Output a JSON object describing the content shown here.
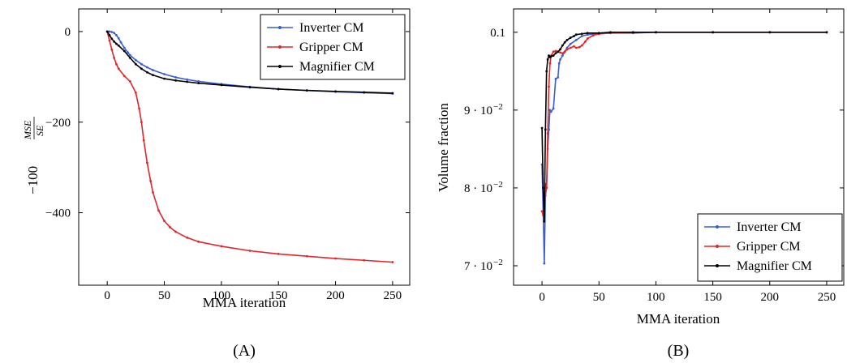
{
  "chart_data": [
    {
      "type": "line",
      "panel_label": "(A)",
      "xlabel": "MMA iteration",
      "ylabel_main": "−100",
      "ylabel_num": "MSE",
      "ylabel_den": "SE",
      "xlim": [
        -25,
        265
      ],
      "ylim": [
        -560,
        50
      ],
      "xticks": [
        0,
        50,
        100,
        150,
        200,
        250
      ],
      "xtick_labels": [
        "0",
        "50",
        "100",
        "150",
        "200",
        "250"
      ],
      "yticks": [
        0,
        -200,
        -400
      ],
      "ytick_labels": [
        "0",
        "−200",
        "−400"
      ],
      "legend_position": "top-right",
      "grid": false,
      "series": [
        {
          "name": "Inverter CM",
          "color": "#3a5fcd",
          "x": [
            0,
            2,
            4,
            6,
            8,
            10,
            12,
            15,
            18,
            20,
            25,
            30,
            35,
            40,
            50,
            60,
            70,
            80,
            100,
            125,
            150,
            175,
            200,
            225,
            250
          ],
          "y": [
            0,
            0,
            -1,
            -3,
            -8,
            -15,
            -24,
            -36,
            -46,
            -52,
            -63,
            -72,
            -79,
            -85,
            -94,
            -101,
            -106,
            -110,
            -116,
            -122,
            -127,
            -130,
            -133,
            -135,
            -137
          ]
        },
        {
          "name": "Gripper CM",
          "color": "#e0262b",
          "x": [
            0,
            2,
            4,
            6,
            8,
            10,
            15,
            20,
            25,
            28,
            30,
            32,
            35,
            38,
            40,
            45,
            50,
            55,
            60,
            70,
            80,
            100,
            125,
            150,
            175,
            200,
            225,
            250
          ],
          "y": [
            0,
            -20,
            -40,
            -58,
            -72,
            -82,
            -98,
            -110,
            -135,
            -170,
            -200,
            -240,
            -290,
            -330,
            -355,
            -395,
            -418,
            -432,
            -442,
            -455,
            -464,
            -474,
            -484,
            -491,
            -496,
            -501,
            -505,
            -509
          ]
        },
        {
          "name": "Magnifier CM",
          "color": "#000000",
          "x": [
            0,
            2,
            4,
            6,
            8,
            10,
            15,
            20,
            25,
            30,
            35,
            40,
            50,
            60,
            70,
            80,
            100,
            125,
            150,
            175,
            200,
            225,
            250
          ],
          "y": [
            0,
            -8,
            -16,
            -22,
            -27,
            -31,
            -43,
            -58,
            -72,
            -82,
            -90,
            -96,
            -104,
            -108,
            -111,
            -114,
            -118,
            -123,
            -127,
            -130,
            -132,
            -134,
            -136
          ]
        }
      ]
    },
    {
      "type": "line",
      "panel_label": "(B)",
      "xlabel": "MMA iteration",
      "ylabel": "Volume fraction",
      "xlim": [
        -25,
        265
      ],
      "ylim": [
        0.0675,
        0.103
      ],
      "xticks": [
        0,
        50,
        100,
        150,
        200,
        250
      ],
      "xtick_labels": [
        "0",
        "50",
        "100",
        "150",
        "200",
        "250"
      ],
      "yticks": [
        0.07,
        0.08,
        0.09,
        0.1
      ],
      "ytick_labels": [
        "7 · 10",
        "8 · 10",
        "9 · 10",
        "0.1"
      ],
      "ytick_exponents": [
        "−2",
        "−2",
        "−2",
        ""
      ],
      "legend_position": "bottom-right",
      "grid": false,
      "series": [
        {
          "name": "Inverter CM",
          "color": "#3a5fcd",
          "x": [
            0,
            1,
            2,
            3,
            4,
            5,
            6,
            7,
            8,
            10,
            12,
            14,
            15,
            16,
            18,
            20,
            22,
            25,
            30,
            35,
            40,
            50,
            60,
            80,
            100,
            150,
            200,
            250
          ],
          "y": [
            0.083,
            0.077,
            0.0703,
            0.079,
            0.08,
            0.085,
            0.0875,
            0.09,
            0.0898,
            0.0902,
            0.094,
            0.0942,
            0.096,
            0.0965,
            0.097,
            0.0975,
            0.098,
            0.0985,
            0.099,
            0.0995,
            0.0997,
            0.0998,
            0.0999,
            0.0999,
            0.1,
            0.1,
            0.1,
            0.1
          ]
        },
        {
          "name": "Gripper CM",
          "color": "#e0262b",
          "x": [
            0,
            1,
            2,
            3,
            4,
            5,
            6,
            7,
            8,
            10,
            12,
            14,
            16,
            18,
            20,
            22,
            25,
            28,
            30,
            33,
            35,
            38,
            40,
            45,
            50,
            60,
            80,
            100,
            150,
            200,
            250
          ],
          "y": [
            0.077,
            0.0765,
            0.077,
            0.0805,
            0.08,
            0.087,
            0.093,
            0.096,
            0.097,
            0.0975,
            0.0976,
            0.0975,
            0.0974,
            0.0973,
            0.0975,
            0.0978,
            0.098,
            0.0982,
            0.098,
            0.0981,
            0.0983,
            0.0988,
            0.0992,
            0.0996,
            0.0998,
            0.0999,
            0.1,
            0.1,
            0.1,
            0.1,
            0.1
          ]
        },
        {
          "name": "Magnifier CM",
          "color": "#000000",
          "x": [
            0,
            1,
            2,
            3,
            4,
            5,
            6,
            7,
            8,
            10,
            12,
            14,
            16,
            18,
            20,
            22,
            25,
            28,
            30,
            35,
            40,
            50,
            60,
            80,
            100,
            150,
            200,
            250
          ],
          "y": [
            0.0877,
            0.08,
            0.0757,
            0.0875,
            0.095,
            0.0965,
            0.097,
            0.0968,
            0.0969,
            0.097,
            0.0973,
            0.0975,
            0.0978,
            0.0983,
            0.0987,
            0.099,
            0.0993,
            0.0995,
            0.0997,
            0.0998,
            0.0999,
            0.0999,
            0.1,
            0.1,
            0.1,
            0.1,
            0.1,
            0.1
          ]
        }
      ]
    }
  ]
}
